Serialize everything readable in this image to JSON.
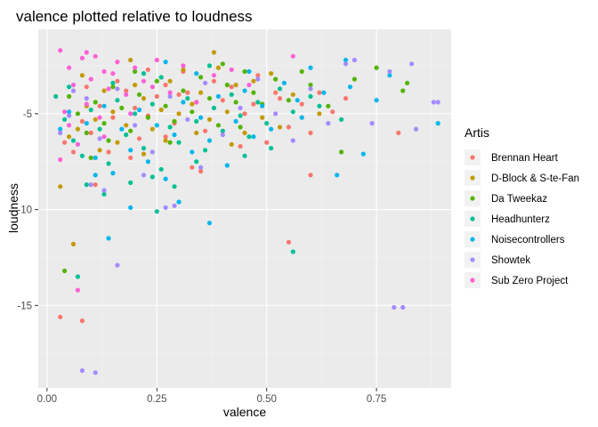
{
  "chart_data": {
    "type": "scatter",
    "title": "valence plotted relative to loudness",
    "xlabel": "valence",
    "ylabel": "loudness",
    "xlim": [
      -0.02,
      0.92
    ],
    "ylim": [
      -19.3,
      -0.6
    ],
    "x_ticks": [
      0.0,
      0.25,
      0.5,
      0.75
    ],
    "x_tick_labels": [
      "0.00",
      "0.25",
      "0.50",
      "0.75"
    ],
    "y_ticks": [
      -15,
      -10,
      -5
    ],
    "y_tick_labels": [
      "-15",
      "-10",
      "-5"
    ],
    "grid": true,
    "legend": {
      "title": "Artis",
      "position": "right"
    },
    "series": [
      {
        "name": "Brennan Heart",
        "color": "#F8766D",
        "points": [
          [
            0.03,
            -15.6
          ],
          [
            0.08,
            -15.8
          ],
          [
            0.55,
            -11.7
          ],
          [
            0.04,
            -6.5
          ],
          [
            0.06,
            -7.0
          ],
          [
            0.08,
            -5.4
          ],
          [
            0.1,
            -6.0
          ],
          [
            0.12,
            -4.6
          ],
          [
            0.15,
            -5.2
          ],
          [
            0.18,
            -3.8
          ],
          [
            0.2,
            -4.7
          ],
          [
            0.21,
            -6.3
          ],
          [
            0.23,
            -5.1
          ],
          [
            0.25,
            -4.1
          ],
          [
            0.27,
            -3.5
          ],
          [
            0.29,
            -5.5
          ],
          [
            0.3,
            -4.0
          ],
          [
            0.32,
            -3.9
          ],
          [
            0.34,
            -4.4
          ],
          [
            0.36,
            -5.9
          ],
          [
            0.38,
            -3.3
          ],
          [
            0.4,
            -4.3
          ],
          [
            0.42,
            -3.6
          ],
          [
            0.45,
            -5.0
          ],
          [
            0.47,
            -4.5
          ],
          [
            0.5,
            -6.5
          ],
          [
            0.52,
            -3.9
          ],
          [
            0.55,
            -5.7
          ],
          [
            0.58,
            -4.5
          ],
          [
            0.6,
            -8.2
          ],
          [
            0.62,
            -3.9
          ],
          [
            0.65,
            -4.9
          ],
          [
            0.68,
            -4.2
          ],
          [
            0.8,
            -6.0
          ],
          [
            0.6,
            -6.0
          ],
          [
            0.35,
            -8.0
          ],
          [
            0.19,
            -7.3
          ],
          [
            0.14,
            -7.0
          ],
          [
            0.11,
            -8.7
          ],
          [
            0.27,
            -6.2
          ],
          [
            0.33,
            -7.8
          ],
          [
            0.44,
            -6.7
          ],
          [
            0.16,
            -3.3
          ],
          [
            0.09,
            -3.6
          ],
          [
            0.23,
            -2.7
          ],
          [
            0.31,
            -2.8
          ],
          [
            0.53,
            -4.2
          ],
          [
            0.48,
            -3.0
          ]
        ]
      },
      {
        "name": "D-Block & S-te-Fan",
        "color": "#C49A00",
        "points": [
          [
            0.06,
            -11.8
          ],
          [
            0.03,
            -8.8
          ],
          [
            0.05,
            -6.2
          ],
          [
            0.07,
            -5.8
          ],
          [
            0.09,
            -4.6
          ],
          [
            0.11,
            -5.3
          ],
          [
            0.13,
            -3.8
          ],
          [
            0.15,
            -4.9
          ],
          [
            0.16,
            -6.5
          ],
          [
            0.18,
            -5.6
          ],
          [
            0.2,
            -3.5
          ],
          [
            0.22,
            -4.2
          ],
          [
            0.24,
            -5.8
          ],
          [
            0.26,
            -4.8
          ],
          [
            0.28,
            -3.3
          ],
          [
            0.3,
            -5.0
          ],
          [
            0.31,
            -2.7
          ],
          [
            0.33,
            -4.5
          ],
          [
            0.35,
            -3.9
          ],
          [
            0.37,
            -5.3
          ],
          [
            0.39,
            -2.6
          ],
          [
            0.41,
            -4.9
          ],
          [
            0.43,
            -3.5
          ],
          [
            0.45,
            -6.0
          ],
          [
            0.47,
            -3.3
          ],
          [
            0.49,
            -5.2
          ],
          [
            0.51,
            -2.9
          ],
          [
            0.53,
            -5.7
          ],
          [
            0.56,
            -4.0
          ],
          [
            0.62,
            -5.0
          ],
          [
            0.38,
            -1.8
          ],
          [
            0.22,
            -7.1
          ],
          [
            0.12,
            -6.9
          ],
          [
            0.27,
            -6.4
          ],
          [
            0.08,
            -3.0
          ],
          [
            0.19,
            -2.2
          ],
          [
            0.42,
            -6.6
          ],
          [
            0.34,
            -6.0
          ]
        ]
      },
      {
        "name": "Da Tweekaz",
        "color": "#53B400",
        "points": [
          [
            0.04,
            -13.2
          ],
          [
            0.05,
            -4.1
          ],
          [
            0.07,
            -5.0
          ],
          [
            0.09,
            -6.0
          ],
          [
            0.11,
            -4.4
          ],
          [
            0.13,
            -5.5
          ],
          [
            0.15,
            -3.6
          ],
          [
            0.17,
            -4.7
          ],
          [
            0.19,
            -5.9
          ],
          [
            0.21,
            -4.0
          ],
          [
            0.23,
            -5.2
          ],
          [
            0.25,
            -3.3
          ],
          [
            0.27,
            -4.6
          ],
          [
            0.29,
            -5.4
          ],
          [
            0.31,
            -3.8
          ],
          [
            0.33,
            -4.9
          ],
          [
            0.35,
            -3.1
          ],
          [
            0.37,
            -4.2
          ],
          [
            0.39,
            -5.6
          ],
          [
            0.41,
            -3.5
          ],
          [
            0.43,
            -4.4
          ],
          [
            0.45,
            -2.8
          ],
          [
            0.47,
            -3.9
          ],
          [
            0.49,
            -4.5
          ],
          [
            0.52,
            -3.2
          ],
          [
            0.55,
            -4.3
          ],
          [
            0.6,
            -3.5
          ],
          [
            0.64,
            -4.6
          ],
          [
            0.67,
            -7.0
          ],
          [
            0.7,
            -3.2
          ],
          [
            0.75,
            -2.6
          ],
          [
            0.82,
            -3.4
          ],
          [
            0.81,
            -3.8
          ],
          [
            0.4,
            -2.4
          ],
          [
            0.28,
            -6.5
          ],
          [
            0.14,
            -6.4
          ],
          [
            0.2,
            -2.8
          ],
          [
            0.58,
            -2.8
          ],
          [
            0.44,
            -5.7
          ],
          [
            0.1,
            -7.3
          ]
        ]
      },
      {
        "name": "Headhunterz",
        "color": "#00C094",
        "points": [
          [
            0.07,
            -13.5
          ],
          [
            0.56,
            -12.2
          ],
          [
            0.25,
            -10.1
          ],
          [
            0.02,
            -4.1
          ],
          [
            0.04,
            -5.3
          ],
          [
            0.06,
            -6.4
          ],
          [
            0.08,
            -7.2
          ],
          [
            0.1,
            -4.8
          ],
          [
            0.12,
            -5.8
          ],
          [
            0.14,
            -7.6
          ],
          [
            0.16,
            -4.3
          ],
          [
            0.18,
            -6.1
          ],
          [
            0.2,
            -5.0
          ],
          [
            0.22,
            -6.8
          ],
          [
            0.24,
            -4.5
          ],
          [
            0.26,
            -7.9
          ],
          [
            0.28,
            -5.7
          ],
          [
            0.3,
            -6.5
          ],
          [
            0.32,
            -4.2
          ],
          [
            0.34,
            -5.4
          ],
          [
            0.36,
            -6.9
          ],
          [
            0.38,
            -4.7
          ],
          [
            0.4,
            -5.9
          ],
          [
            0.42,
            -4.0
          ],
          [
            0.44,
            -5.1
          ],
          [
            0.46,
            -6.2
          ],
          [
            0.48,
            -4.4
          ],
          [
            0.5,
            -5.5
          ],
          [
            0.53,
            -3.7
          ],
          [
            0.56,
            -4.9
          ],
          [
            0.6,
            -4.1
          ],
          [
            0.67,
            -5.3
          ],
          [
            0.24,
            -8.3
          ],
          [
            0.19,
            -8.6
          ],
          [
            0.13,
            -9.2
          ],
          [
            0.29,
            -8.8
          ],
          [
            0.34,
            -7.5
          ],
          [
            0.09,
            -8.7
          ],
          [
            0.37,
            -2.5
          ],
          [
            0.26,
            -3.1
          ],
          [
            0.45,
            -7.2
          ],
          [
            0.51,
            -6.8
          ],
          [
            0.22,
            -2.9
          ],
          [
            0.05,
            -3.6
          ],
          [
            0.15,
            -3.4
          ],
          [
            0.62,
            -4.6
          ]
        ]
      },
      {
        "name": "Noisecontrollers",
        "color": "#00B6EB",
        "points": [
          [
            0.14,
            -11.5
          ],
          [
            0.37,
            -10.7
          ],
          [
            0.03,
            -5.8
          ],
          [
            0.05,
            -4.9
          ],
          [
            0.07,
            -6.6
          ],
          [
            0.09,
            -5.5
          ],
          [
            0.11,
            -7.3
          ],
          [
            0.13,
            -4.6
          ],
          [
            0.15,
            -8.1
          ],
          [
            0.17,
            -5.8
          ],
          [
            0.19,
            -6.9
          ],
          [
            0.21,
            -4.8
          ],
          [
            0.23,
            -7.5
          ],
          [
            0.25,
            -5.6
          ],
          [
            0.27,
            -8.4
          ],
          [
            0.29,
            -6.1
          ],
          [
            0.31,
            -4.4
          ],
          [
            0.33,
            -7.0
          ],
          [
            0.35,
            -5.2
          ],
          [
            0.37,
            -6.4
          ],
          [
            0.39,
            -4.1
          ],
          [
            0.41,
            -7.7
          ],
          [
            0.43,
            -5.4
          ],
          [
            0.45,
            -3.8
          ],
          [
            0.47,
            -6.2
          ],
          [
            0.49,
            -4.6
          ],
          [
            0.51,
            -5.8
          ],
          [
            0.54,
            -3.4
          ],
          [
            0.57,
            -4.3
          ],
          [
            0.6,
            -2.6
          ],
          [
            0.63,
            -3.9
          ],
          [
            0.66,
            -8.2
          ],
          [
            0.69,
            -3.6
          ],
          [
            0.72,
            -7.1
          ],
          [
            0.75,
            -4.3
          ],
          [
            0.78,
            -3.0
          ],
          [
            0.89,
            -5.5
          ],
          [
            0.68,
            -2.2
          ],
          [
            0.3,
            -9.6
          ],
          [
            0.19,
            -9.9
          ],
          [
            0.11,
            -8.2
          ],
          [
            0.58,
            -5.2
          ],
          [
            0.27,
            -2.3
          ],
          [
            0.46,
            -2.8
          ],
          [
            0.34,
            -2.9
          ]
        ]
      },
      {
        "name": "Showtek",
        "color": "#A58AFF",
        "points": [
          [
            0.08,
            -18.4
          ],
          [
            0.11,
            -18.5
          ],
          [
            0.79,
            -15.1
          ],
          [
            0.81,
            -15.1
          ],
          [
            0.16,
            -12.9
          ],
          [
            0.27,
            -9.9
          ],
          [
            0.29,
            -9.8
          ],
          [
            0.13,
            -9.0
          ],
          [
            0.03,
            -6.0
          ],
          [
            0.05,
            -5.1
          ],
          [
            0.09,
            -4.2
          ],
          [
            0.12,
            -6.3
          ],
          [
            0.16,
            -3.7
          ],
          [
            0.2,
            -5.6
          ],
          [
            0.24,
            -7.0
          ],
          [
            0.28,
            -4.1
          ],
          [
            0.32,
            -5.3
          ],
          [
            0.36,
            -3.4
          ],
          [
            0.4,
            -6.1
          ],
          [
            0.44,
            -4.7
          ],
          [
            0.48,
            -3.2
          ],
          [
            0.52,
            -5.0
          ],
          [
            0.56,
            -6.4
          ],
          [
            0.6,
            -3.7
          ],
          [
            0.64,
            -5.5
          ],
          [
            0.68,
            -2.4
          ],
          [
            0.7,
            -2.2
          ],
          [
            0.74,
            -5.5
          ],
          [
            0.78,
            -2.8
          ],
          [
            0.84,
            -5.8
          ],
          [
            0.88,
            -4.4
          ],
          [
            0.89,
            -4.4
          ],
          [
            0.83,
            -2.4
          ],
          [
            0.1,
            -8.7
          ],
          [
            0.22,
            -8.2
          ],
          [
            0.35,
            -7.8
          ],
          [
            0.06,
            -3.8
          ]
        ]
      },
      {
        "name": "Sub Zero Project",
        "color": "#FB61D7",
        "points": [
          [
            0.07,
            -14.2
          ],
          [
            0.03,
            -1.7
          ],
          [
            0.05,
            -2.6
          ],
          [
            0.06,
            -3.5
          ],
          [
            0.08,
            -2.1
          ],
          [
            0.09,
            -4.5
          ],
          [
            0.1,
            -3.2
          ],
          [
            0.11,
            -2.0
          ],
          [
            0.12,
            -5.2
          ],
          [
            0.13,
            -2.8
          ],
          [
            0.14,
            -3.7
          ],
          [
            0.16,
            -2.3
          ],
          [
            0.18,
            -4.0
          ],
          [
            0.2,
            -2.6
          ],
          [
            0.22,
            -3.3
          ],
          [
            0.25,
            -2.2
          ],
          [
            0.28,
            -3.9
          ],
          [
            0.31,
            -2.5
          ],
          [
            0.34,
            -4.4
          ],
          [
            0.38,
            -3.0
          ],
          [
            0.42,
            -2.7
          ],
          [
            0.46,
            -3.5
          ],
          [
            0.56,
            -2.0
          ],
          [
            0.04,
            -4.9
          ],
          [
            0.03,
            -7.4
          ],
          [
            0.07,
            -6.6
          ],
          [
            0.13,
            -6.2
          ],
          [
            0.19,
            -5.0
          ],
          [
            0.09,
            -1.8
          ],
          [
            0.15,
            -2.9
          ],
          [
            0.24,
            -3.6
          ],
          [
            0.05,
            -5.6
          ]
        ]
      }
    ]
  }
}
